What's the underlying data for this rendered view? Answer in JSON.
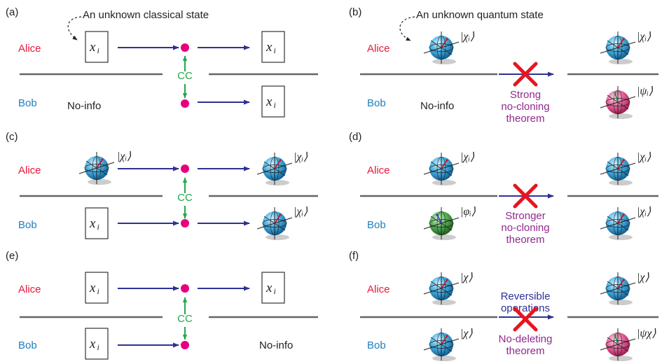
{
  "panels": {
    "a": {
      "label": "(a)",
      "annotation": "An unknown classical state",
      "alice": "Alice",
      "bob": "Bob",
      "bob_state": "No-info",
      "channel": "CC",
      "box_text": "x",
      "box_sub": "i"
    },
    "b": {
      "label": "(b)",
      "annotation": "An unknown quantum state",
      "alice": "Alice",
      "bob": "Bob",
      "bob_state": "No-info",
      "ket_in": "|χᵢ⟩",
      "ket_out_alice": "|χᵢ⟩",
      "ket_out_bob": "|ψᵢ⟩",
      "theorem_line1": "Strong",
      "theorem_line2": "no-cloning",
      "theorem_line3": "theorem"
    },
    "c": {
      "label": "(c)",
      "alice": "Alice",
      "bob": "Bob",
      "channel": "CC",
      "ket_in": "|χᵢ⟩",
      "ket_out_alice": "|χᵢ⟩",
      "ket_out_bob": "|χᵢ⟩",
      "box_text": "x",
      "box_sub": "i"
    },
    "d": {
      "label": "(d)",
      "alice": "Alice",
      "bob": "Bob",
      "ket_in_alice": "|χᵢ⟩",
      "ket_in_bob": "|φᵢ⟩",
      "ket_out_alice": "|χᵢ⟩",
      "ket_out_bob": "|χᵢ⟩",
      "theorem_line1": "Stronger",
      "theorem_line2": "no-cloning",
      "theorem_line3": "theorem"
    },
    "e": {
      "label": "(e)",
      "alice": "Alice",
      "bob": "Bob",
      "bob_state": "No-info",
      "channel": "CC",
      "box_text": "x",
      "box_sub": "i"
    },
    "f": {
      "label": "(f)",
      "alice": "Alice",
      "bob": "Bob",
      "ket_in_alice": "|χ⟩",
      "ket_in_bob": "|χ⟩",
      "ket_out_alice": "|χ⟩",
      "ket_out_bob": "|ψχ⟩",
      "ops_line1": "Reversible",
      "ops_line2": "operations",
      "theorem_line1": "No-deleting",
      "theorem_line2": "theorem"
    }
  },
  "colors": {
    "alice": "#e8193c",
    "bob": "#1f7fc0",
    "arrow": "#2e3192",
    "channel": "#22a84a",
    "node": "#e6007e",
    "theorem": "#92278f",
    "cross": "#e8141e",
    "sphere_blue": "#3aa8de",
    "sphere_pink": "#e85a9a",
    "sphere_green": "#3a9a3a"
  },
  "icons": [
    "bloch-sphere-icon",
    "red-cross-icon",
    "dashed-curved-arrow-icon"
  ]
}
